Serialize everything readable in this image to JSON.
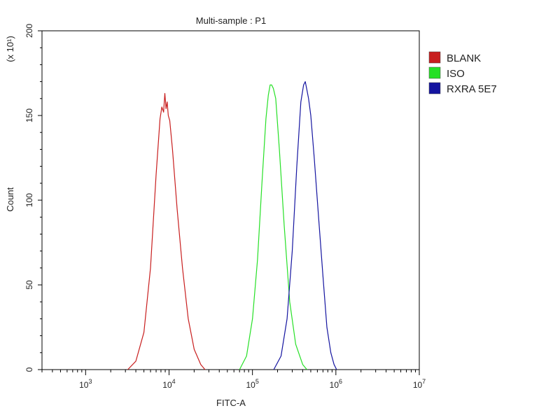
{
  "chart_data": {
    "type": "line",
    "title": "Multi-sample : P1",
    "xlabel": "FITC-A",
    "ylabel": "Count",
    "y_multiplier_label": "(x 10¹)",
    "x_scale": "log",
    "xlim": [
      300,
      10000000
    ],
    "ylim": [
      0,
      200
    ],
    "x_ticks": [
      {
        "value": 1000,
        "base": "10",
        "exp": "3"
      },
      {
        "value": 10000,
        "base": "10",
        "exp": "4"
      },
      {
        "value": 100000,
        "base": "10",
        "exp": "5"
      },
      {
        "value": 1000000,
        "base": "10",
        "exp": "6"
      },
      {
        "value": 10000000,
        "base": "10",
        "exp": "7"
      }
    ],
    "y_ticks": [
      {
        "value": 0,
        "label": "0"
      },
      {
        "value": 50,
        "label": "50"
      },
      {
        "value": 100,
        "label": "100"
      },
      {
        "value": 150,
        "label": "150"
      },
      {
        "value": 200,
        "label": "200"
      }
    ],
    "grid": false,
    "legend_position": "right",
    "series": [
      {
        "name": "BLANK",
        "color": "#c81e1e",
        "x": [
          3200,
          4000,
          5000,
          6000,
          7000,
          7800,
          8200,
          8600,
          8900,
          9200,
          9500,
          9800,
          10200,
          11000,
          12500,
          14500,
          17000,
          20000,
          24000,
          27000
        ],
        "y": [
          0,
          5,
          22,
          60,
          115,
          148,
          155,
          152,
          163,
          154,
          158,
          150,
          147,
          130,
          95,
          60,
          30,
          12,
          3,
          0
        ]
      },
      {
        "name": "ISO",
        "color": "#26e026",
        "x": [
          70000,
          85000,
          100000,
          115000,
          130000,
          145000,
          155000,
          163000,
          170000,
          178000,
          190000,
          210000,
          240000,
          280000,
          330000,
          400000,
          450000
        ],
        "y": [
          0,
          8,
          30,
          65,
          110,
          148,
          162,
          168,
          168,
          166,
          160,
          130,
          85,
          40,
          15,
          3,
          0
        ]
      },
      {
        "name": "RXRA 5E7",
        "color": "#1414a0",
        "x": [
          180000,
          220000,
          260000,
          300000,
          340000,
          380000,
          410000,
          430000,
          450000,
          470000,
          500000,
          550000,
          620000,
          700000,
          780000,
          870000,
          950000,
          1020000
        ],
        "y": [
          0,
          8,
          30,
          70,
          120,
          158,
          168,
          170,
          165,
          160,
          150,
          125,
          90,
          55,
          25,
          10,
          3,
          0
        ]
      }
    ]
  }
}
